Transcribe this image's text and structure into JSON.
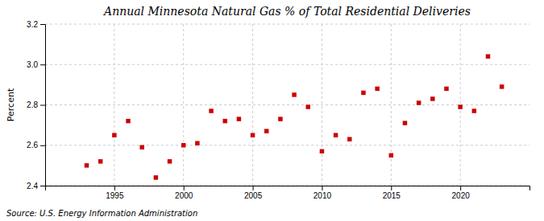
{
  "chart_data": {
    "type": "scatter",
    "title": "Annual Minnesota Natural Gas % of Total Residential Deliveries",
    "ylabel": "Percent",
    "annotation": "Source: U.S. Energy Information Administration",
    "x": [
      1993,
      1994,
      1995,
      1996,
      1997,
      1998,
      1999,
      2000,
      2001,
      2002,
      2003,
      2004,
      2005,
      2006,
      2007,
      2008,
      2009,
      2010,
      2011,
      2012,
      2013,
      2014,
      2015,
      2016,
      2017,
      2018,
      2019,
      2020,
      2021,
      2022,
      2023
    ],
    "values": [
      2.5,
      2.52,
      2.65,
      2.72,
      2.59,
      2.44,
      2.52,
      2.6,
      2.61,
      2.77,
      2.72,
      2.73,
      2.65,
      2.67,
      2.73,
      2.85,
      2.79,
      2.57,
      2.65,
      2.63,
      2.86,
      2.88,
      2.55,
      2.71,
      2.81,
      2.83,
      2.88,
      2.79,
      2.77,
      3.04,
      2.89
    ],
    "color": "#cc0000",
    "marker": "square",
    "xlim": [
      1990,
      2025
    ],
    "xticks": [
      1995,
      2000,
      2005,
      2010,
      2015,
      2020
    ],
    "ylim": [
      2.4,
      3.2
    ],
    "yticks": [
      2.4,
      2.6,
      2.8,
      {
        "value": 3.0,
        "label": "3.0"
      },
      3.2
    ],
    "grid": true
  }
}
